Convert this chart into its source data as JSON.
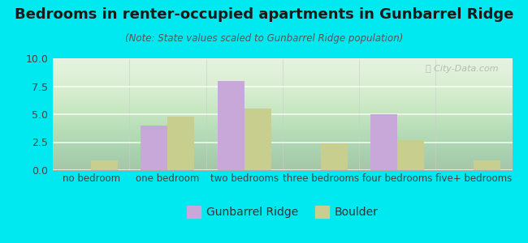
{
  "title": "Bedrooms in renter-occupied apartments in Gunbarrel Ridge",
  "subtitle": "(Note: State values scaled to Gunbarrel Ridge population)",
  "categories": [
    "no bedroom",
    "one bedroom",
    "two bedrooms",
    "three bedrooms",
    "four bedrooms",
    "five+ bedrooms"
  ],
  "gunbarrel_values": [
    0,
    4.0,
    8.0,
    0,
    5.0,
    0
  ],
  "boulder_values": [
    0.9,
    4.8,
    5.5,
    2.4,
    2.7,
    0.9
  ],
  "gunbarrel_color": "#c8a8d8",
  "boulder_color": "#c8cf8e",
  "background_color": "#00e8f0",
  "plot_bg_color": "#e8f5e0",
  "ylim": [
    0,
    10
  ],
  "yticks": [
    0,
    2.5,
    5,
    7.5,
    10
  ],
  "bar_width": 0.35,
  "legend_label_1": "Gunbarrel Ridge",
  "legend_label_2": "Boulder",
  "title_fontsize": 13,
  "subtitle_fontsize": 8.5,
  "tick_fontsize": 8.5,
  "ytick_fontsize": 9
}
